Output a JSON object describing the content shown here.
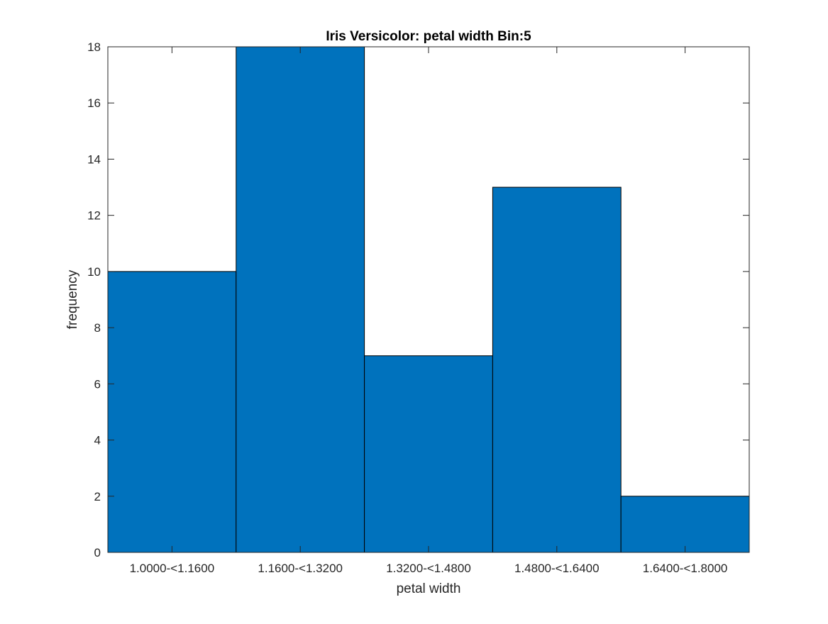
{
  "chart_data": {
    "type": "bar",
    "title": "Iris Versicolor: petal width Bin:5",
    "xlabel": "petal width",
    "ylabel": "frequency",
    "categories": [
      "1.0000-<1.1600",
      "1.1600-<1.3200",
      "1.3200-<1.4800",
      "1.4800-<1.6400",
      "1.6400-<1.8000"
    ],
    "values": [
      10,
      18,
      7,
      13,
      2
    ],
    "ylim": [
      0,
      18
    ],
    "yticks": [
      0,
      2,
      4,
      6,
      8,
      10,
      12,
      14,
      16,
      18
    ],
    "grid": false,
    "bar_color": "#0072BD",
    "edge_color": "#000000"
  }
}
